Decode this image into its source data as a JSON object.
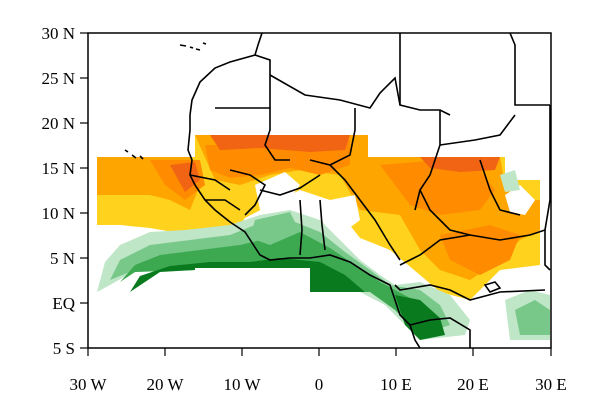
{
  "map": {
    "y_tick_labels": [
      "30 N",
      "25 N",
      "20 N",
      "15 N",
      "10 N",
      "5 N",
      "EQ",
      "5 S"
    ],
    "x_tick_labels": [
      "30 W",
      "20 W",
      "10 W",
      "0",
      "10 E",
      "20 E",
      "30 E"
    ],
    "lon_range": [
      -30,
      30
    ],
    "lat_range": [
      -5,
      30
    ],
    "colors": {
      "frame": "#000000",
      "coastline": "#000000",
      "yellow": "#FFD21E",
      "orange": "#FFA500",
      "dark_orange": "#FF8C00",
      "red_orange": "#F06414",
      "green_dark": "#0A7A1E",
      "green_mid": "#3CA850",
      "green_light": "#78C88A",
      "green_pale": "#C0E6C8",
      "white": "#FFFFFF"
    },
    "legend": "none"
  }
}
